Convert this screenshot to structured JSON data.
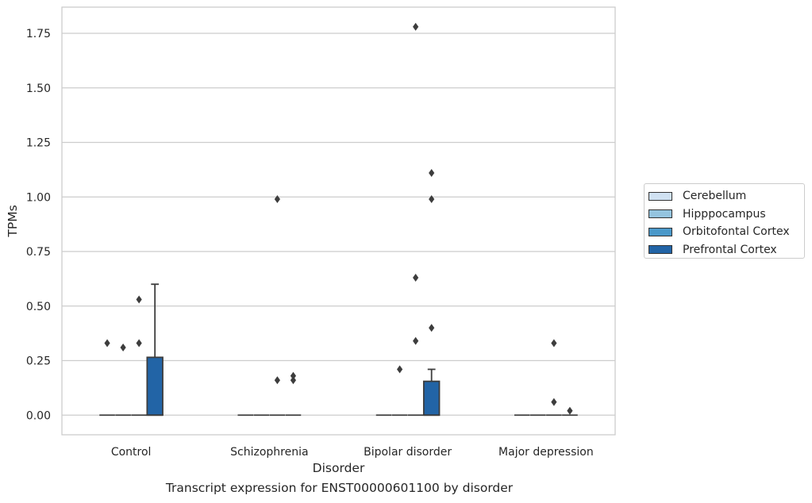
{
  "chart_data": {
    "type": "box",
    "xlabel": "Disorder",
    "ylabel": "TPMs",
    "caption": "Transcript expression for ENST00000601100 by disorder",
    "categories": [
      "Control",
      "Schizophrenia",
      "Bipolar disorder",
      "Major depression"
    ],
    "yticks": [
      0.0,
      0.25,
      0.5,
      0.75,
      1.0,
      1.25,
      1.5,
      1.75
    ],
    "ytick_labels": [
      "0.00",
      "0.25",
      "0.50",
      "0.75",
      "1.00",
      "1.25",
      "1.50",
      "1.75"
    ],
    "ylim": [
      -0.09,
      1.87
    ],
    "grid": true,
    "legend_position": "right",
    "series": [
      {
        "name": "Cerebellum",
        "color": "#d0e1f2",
        "boxes": [
          {
            "q1": 0,
            "median": 0,
            "q3": 0,
            "whisker_low": 0,
            "whisker_high": 0,
            "outliers": [
              0.33
            ]
          },
          {
            "q1": 0,
            "median": 0,
            "q3": 0,
            "whisker_low": 0,
            "whisker_high": 0,
            "outliers": []
          },
          {
            "q1": 0,
            "median": 0,
            "q3": 0,
            "whisker_low": 0,
            "whisker_high": 0,
            "outliers": []
          },
          {
            "q1": 0,
            "median": 0,
            "q3": 0,
            "whisker_low": 0,
            "whisker_high": 0,
            "outliers": []
          }
        ]
      },
      {
        "name": "Hipppocampus",
        "color": "#94c4df",
        "boxes": [
          {
            "q1": 0,
            "median": 0,
            "q3": 0,
            "whisker_low": 0,
            "whisker_high": 0,
            "outliers": [
              0.31
            ]
          },
          {
            "q1": 0,
            "median": 0,
            "q3": 0,
            "whisker_low": 0,
            "whisker_high": 0,
            "outliers": []
          },
          {
            "q1": 0,
            "median": 0,
            "q3": 0,
            "whisker_low": 0,
            "whisker_high": 0,
            "outliers": [
              0.21
            ]
          },
          {
            "q1": 0,
            "median": 0,
            "q3": 0,
            "whisker_low": 0,
            "whisker_high": 0,
            "outliers": []
          }
        ]
      },
      {
        "name": "Orbitofontal Cortex",
        "color": "#4a98c9",
        "boxes": [
          {
            "q1": 0,
            "median": 0,
            "q3": 0,
            "whisker_low": 0,
            "whisker_high": 0,
            "outliers": [
              0.53,
              0.33
            ]
          },
          {
            "q1": 0,
            "median": 0,
            "q3": 0,
            "whisker_low": 0,
            "whisker_high": 0,
            "outliers": [
              0.99,
              0.16
            ]
          },
          {
            "q1": 0,
            "median": 0,
            "q3": 0,
            "whisker_low": 0,
            "whisker_high": 0,
            "outliers": [
              1.78,
              0.63,
              0.34
            ]
          },
          {
            "q1": 0,
            "median": 0,
            "q3": 0,
            "whisker_low": 0,
            "whisker_high": 0,
            "outliers": [
              0.33,
              0.06
            ]
          }
        ]
      },
      {
        "name": "Prefrontal Cortex",
        "color": "#2264a6",
        "boxes": [
          {
            "q1": 0,
            "median": 0,
            "q3": 0.265,
            "whisker_low": 0,
            "whisker_high": 0.6,
            "outliers": []
          },
          {
            "q1": 0,
            "median": 0,
            "q3": 0,
            "whisker_low": 0,
            "whisker_high": 0,
            "outliers": [
              0.18,
              0.16
            ]
          },
          {
            "q1": 0,
            "median": 0,
            "q3": 0.155,
            "whisker_low": 0,
            "whisker_high": 0.21,
            "outliers": [
              1.11,
              0.99,
              0.4
            ]
          },
          {
            "q1": 0,
            "median": 0,
            "q3": 0,
            "whisker_low": 0,
            "whisker_high": 0,
            "outliers": [
              0.02
            ]
          }
        ]
      }
    ]
  }
}
